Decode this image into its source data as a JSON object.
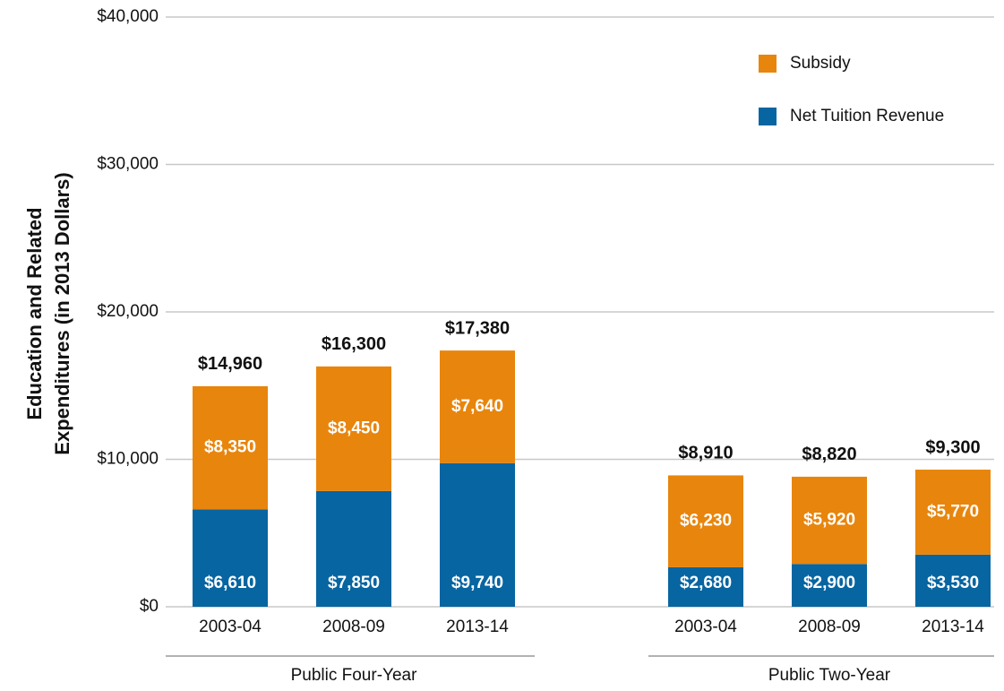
{
  "chart_data": {
    "type": "stacked_bar",
    "ylabel": [
      "Education and Related",
      "Expenditures (in 2013 Dollars)"
    ],
    "groups": [
      "Public Four-Year",
      "Public Two-Year"
    ],
    "categories": [
      "2003-04",
      "2008-09",
      "2013-14",
      "2003-04",
      "2008-09",
      "2013-14"
    ],
    "series": [
      {
        "name": "Net Tuition Revenue",
        "color": "#0765a1",
        "values": [
          6610,
          7850,
          9740,
          2680,
          2900,
          3530
        ],
        "value_labels": [
          "$6,610",
          "$7,850",
          "$9,740",
          "$2,680",
          "$2,900",
          "$3,530"
        ]
      },
      {
        "name": "Subsidy",
        "color": "#e8850c",
        "values": [
          8350,
          8450,
          7640,
          6230,
          5920,
          5770
        ],
        "value_labels": [
          "$8,350",
          "$8,450",
          "$7,640",
          "$6,230",
          "$5,920",
          "$5,770"
        ]
      }
    ],
    "totals": [
      14960,
      16300,
      17380,
      8910,
      8820,
      9300
    ],
    "total_labels": [
      "$14,960",
      "$16,300",
      "$17,380",
      "$8,910",
      "$8,820",
      "$9,300"
    ],
    "ylim": [
      0,
      40000
    ],
    "yticks": [
      {
        "value": 0,
        "label": "$0"
      },
      {
        "value": 10000,
        "label": "$10,000"
      },
      {
        "value": 20000,
        "label": "$20,000"
      },
      {
        "value": 30000,
        "label": "$30,000"
      },
      {
        "value": 40000,
        "label": "$40,000"
      }
    ],
    "grid": true,
    "legend": "upper right"
  }
}
